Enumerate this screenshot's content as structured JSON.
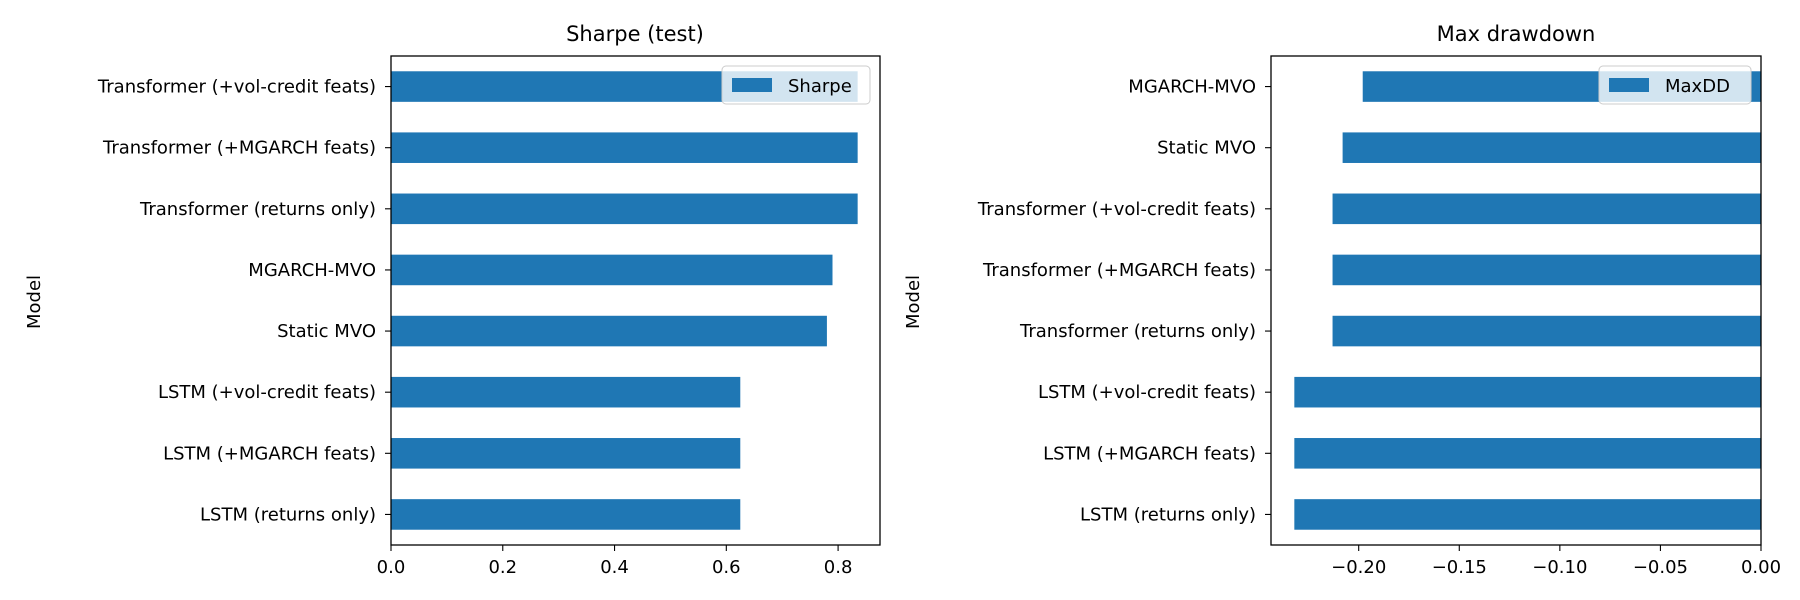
{
  "chart_data": [
    {
      "type": "bar",
      "orientation": "horizontal",
      "title": "Sharpe (test)",
      "xlabel": "",
      "ylabel": "Model",
      "categories": [
        "LSTM (returns only)",
        "LSTM (+MGARCH feats)",
        "LSTM (+vol-credit feats)",
        "Static MVO",
        "MGARCH-MVO",
        "Transformer (returns only)",
        "Transformer (+MGARCH feats)",
        "Transformer (+vol-credit feats)"
      ],
      "series": [
        {
          "name": "Sharpe",
          "color": "#1f77b4",
          "values": [
            0.625,
            0.625,
            0.625,
            0.78,
            0.79,
            0.835,
            0.835,
            0.835
          ]
        }
      ],
      "xlim": [
        0.0,
        0.875
      ],
      "xticks": [
        0.0,
        0.2,
        0.4,
        0.6,
        0.8
      ],
      "xtick_labels": [
        "0.0",
        "0.2",
        "0.4",
        "0.6",
        "0.8"
      ],
      "grid": false,
      "legend_position": "top-right"
    },
    {
      "type": "bar",
      "orientation": "horizontal",
      "title": "Max drawdown",
      "xlabel": "",
      "ylabel": "Model",
      "categories": [
        "LSTM (returns only)",
        "LSTM (+MGARCH feats)",
        "LSTM (+vol-credit feats)",
        "Transformer (returns only)",
        "Transformer (+MGARCH feats)",
        "Transformer (+vol-credit feats)",
        "Static MVO",
        "MGARCH-MVO"
      ],
      "series": [
        {
          "name": "MaxDD",
          "color": "#1f77b4",
          "values": [
            -0.232,
            -0.232,
            -0.232,
            -0.213,
            -0.213,
            -0.213,
            -0.208,
            -0.198
          ]
        }
      ],
      "xlim": [
        -0.2436,
        0.0
      ],
      "xticks": [
        -0.2,
        -0.15,
        -0.1,
        -0.05,
        0.0
      ],
      "xtick_labels": [
        "−0.20",
        "−0.15",
        "−0.10",
        "−0.05",
        "0.00"
      ],
      "grid": false,
      "legend_position": "top-right"
    }
  ]
}
